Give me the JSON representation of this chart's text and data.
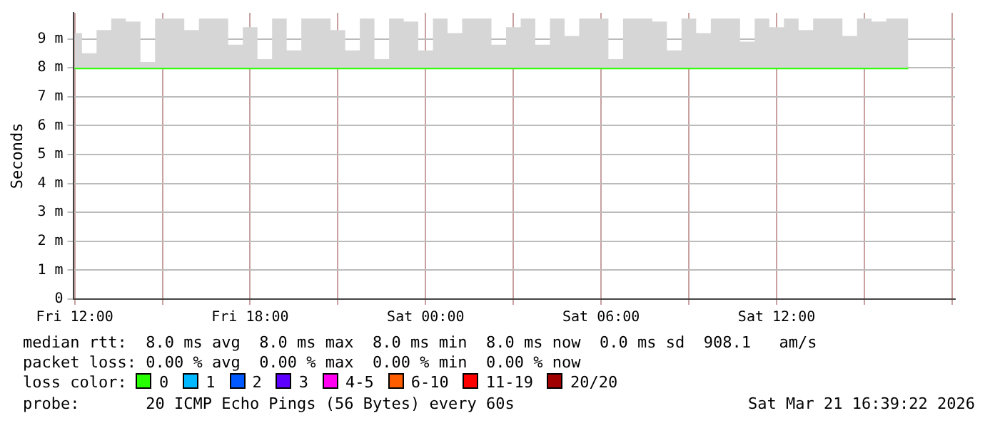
{
  "chart_data": {
    "type": "line",
    "ylabel": "Seconds",
    "legend_title": "loss color:",
    "legend": "bottom",
    "grid": true,
    "marker": "none",
    "line_style": "solid",
    "x": [
      "2026-03-20T12:00",
      "2026-03-20T12:30",
      "2026-03-20T13:00",
      "2026-03-20T13:30",
      "2026-03-20T14:00",
      "2026-03-20T14:30",
      "2026-03-20T15:00",
      "2026-03-20T15:30",
      "2026-03-20T16:00",
      "2026-03-20T16:30",
      "2026-03-20T17:00",
      "2026-03-20T17:30",
      "2026-03-20T18:00",
      "2026-03-20T18:30",
      "2026-03-20T19:00",
      "2026-03-20T19:30",
      "2026-03-20T20:00",
      "2026-03-20T20:30",
      "2026-03-20T21:00",
      "2026-03-20T21:30",
      "2026-03-20T22:00",
      "2026-03-20T22:30",
      "2026-03-20T23:00",
      "2026-03-20T23:30",
      "2026-03-21T00:00",
      "2026-03-21T00:30",
      "2026-03-21T01:00",
      "2026-03-21T01:30",
      "2026-03-21T02:00",
      "2026-03-21T02:30",
      "2026-03-21T03:00",
      "2026-03-21T03:30",
      "2026-03-21T04:00",
      "2026-03-21T04:30",
      "2026-03-21T05:00",
      "2026-03-21T05:30",
      "2026-03-21T06:00",
      "2026-03-21T06:30",
      "2026-03-21T07:00",
      "2026-03-21T07:30",
      "2026-03-21T08:00",
      "2026-03-21T08:30",
      "2026-03-21T09:00",
      "2026-03-21T09:30",
      "2026-03-21T10:00",
      "2026-03-21T10:30",
      "2026-03-21T11:00",
      "2026-03-21T11:30",
      "2026-03-21T12:00",
      "2026-03-21T12:30",
      "2026-03-21T13:00",
      "2026-03-21T13:30",
      "2026-03-21T14:00",
      "2026-03-21T14:30",
      "2026-03-21T15:00",
      "2026-03-21T15:30",
      "2026-03-21T16:00",
      "2026-03-21T16:30"
    ],
    "xlim": [
      "2026-03-20T11:57",
      "2026-03-21T18:06"
    ],
    "xticks": [
      {
        "value": "2026-03-20T12:00",
        "label": "Fri 12:00"
      },
      {
        "value": "2026-03-20T15:00",
        "label": null
      },
      {
        "value": "2026-03-20T18:00",
        "label": "Fri 18:00"
      },
      {
        "value": "2026-03-20T21:00",
        "label": null
      },
      {
        "value": "2026-03-21T00:00",
        "label": "Sat 00:00"
      },
      {
        "value": "2026-03-21T03:00",
        "label": null
      },
      {
        "value": "2026-03-21T06:00",
        "label": "Sat 06:00"
      },
      {
        "value": "2026-03-21T09:00",
        "label": null
      },
      {
        "value": "2026-03-21T12:00",
        "label": "Sat 12:00"
      },
      {
        "value": "2026-03-21T15:00",
        "label": null
      },
      {
        "value": "2026-03-21T18:00",
        "label": null
      }
    ],
    "ylim": [
      0,
      9.9
    ],
    "yticks": [
      0,
      {
        "value": 1,
        "label": "1 m"
      },
      {
        "value": 2,
        "label": "2 m"
      },
      {
        "value": 3,
        "label": "3 m"
      },
      {
        "value": 4,
        "label": "4 m"
      },
      {
        "value": 5,
        "label": "5 m"
      },
      {
        "value": 6,
        "label": "6 m"
      },
      {
        "value": 7,
        "label": "7 m"
      },
      {
        "value": 8,
        "label": "8 m"
      },
      {
        "value": 9,
        "label": "9 m"
      }
    ],
    "series": [
      {
        "name": "0",
        "color": "#26ff00",
        "values": [
          8,
          8,
          8,
          8,
          8,
          8,
          8,
          8,
          8,
          8,
          8,
          8,
          8,
          8,
          8,
          8,
          8,
          8,
          8,
          8,
          8,
          8,
          8,
          8,
          8,
          8,
          8,
          8,
          8,
          8,
          8,
          8,
          8,
          8,
          8,
          8,
          8,
          8,
          8,
          8,
          8,
          8,
          8,
          8,
          8,
          8,
          8,
          8,
          8,
          8,
          8,
          8,
          8,
          8,
          8,
          8,
          8,
          8
        ],
        "lower": [
          8,
          8,
          8,
          8,
          8,
          8,
          8,
          8,
          8,
          8,
          8,
          8,
          8,
          8,
          8,
          8,
          8,
          8,
          8,
          8,
          8,
          8,
          8,
          8,
          8,
          8,
          8,
          8,
          8,
          8,
          8,
          8,
          8,
          8,
          8,
          8,
          8,
          8,
          8,
          8,
          8,
          8,
          8,
          8,
          8,
          8,
          8,
          8,
          8,
          8,
          8,
          8,
          8,
          8,
          8,
          8,
          8,
          8
        ],
        "upper": [
          9.2,
          8.5,
          9.3,
          9.7,
          9.6,
          8.2,
          9.7,
          9.7,
          9.3,
          9.7,
          9.7,
          8.8,
          9.4,
          8.3,
          9.7,
          8.6,
          9.7,
          9.7,
          9.3,
          8.6,
          9.7,
          8.3,
          9.7,
          9.6,
          8.6,
          9.7,
          9.2,
          9.7,
          9.7,
          8.8,
          9.4,
          9.7,
          8.8,
          9.7,
          9.1,
          9.7,
          9.7,
          8.3,
          9.7,
          9.7,
          9.6,
          8.6,
          9.7,
          9.2,
          9.7,
          9.7,
          8.9,
          9.7,
          9.4,
          9.7,
          9.3,
          9.7,
          9.7,
          9.1,
          9.7,
          9.6,
          9.7,
          9.7
        ]
      },
      {
        "name": "1",
        "color": "#00b8ff",
        "values": [
          null,
          null,
          null,
          null,
          null,
          null,
          null,
          null,
          null,
          null,
          null,
          null,
          null,
          null,
          null,
          null,
          null,
          null,
          null,
          null,
          null,
          null,
          null,
          null,
          null,
          null,
          null,
          null,
          null,
          null,
          null,
          null,
          null,
          null,
          null,
          null,
          null,
          null,
          null,
          null,
          null,
          null,
          null,
          null,
          null,
          null,
          null,
          null,
          null,
          null,
          null,
          null,
          null,
          null,
          null,
          null,
          null,
          null
        ]
      },
      {
        "name": "2",
        "color": "#0059ff",
        "values": [
          null,
          null,
          null,
          null,
          null,
          null,
          null,
          null,
          null,
          null,
          null,
          null,
          null,
          null,
          null,
          null,
          null,
          null,
          null,
          null,
          null,
          null,
          null,
          null,
          null,
          null,
          null,
          null,
          null,
          null,
          null,
          null,
          null,
          null,
          null,
          null,
          null,
          null,
          null,
          null,
          null,
          null,
          null,
          null,
          null,
          null,
          null,
          null,
          null,
          null,
          null,
          null,
          null,
          null,
          null,
          null,
          null,
          null
        ]
      },
      {
        "name": "3",
        "color": "#5e00ff",
        "values": [
          null,
          null,
          null,
          null,
          null,
          null,
          null,
          null,
          null,
          null,
          null,
          null,
          null,
          null,
          null,
          null,
          null,
          null,
          null,
          null,
          null,
          null,
          null,
          null,
          null,
          null,
          null,
          null,
          null,
          null,
          null,
          null,
          null,
          null,
          null,
          null,
          null,
          null,
          null,
          null,
          null,
          null,
          null,
          null,
          null,
          null,
          null,
          null,
          null,
          null,
          null,
          null,
          null,
          null,
          null,
          null,
          null,
          null
        ]
      },
      {
        "name": "4-5",
        "color": "#ff00f0",
        "values": [
          null,
          null,
          null,
          null,
          null,
          null,
          null,
          null,
          null,
          null,
          null,
          null,
          null,
          null,
          null,
          null,
          null,
          null,
          null,
          null,
          null,
          null,
          null,
          null,
          null,
          null,
          null,
          null,
          null,
          null,
          null,
          null,
          null,
          null,
          null,
          null,
          null,
          null,
          null,
          null,
          null,
          null,
          null,
          null,
          null,
          null,
          null,
          null,
          null,
          null,
          null,
          null,
          null,
          null,
          null,
          null,
          null,
          null
        ]
      },
      {
        "name": "6-10",
        "color": "#ff5e00",
        "values": [
          null,
          null,
          null,
          null,
          null,
          null,
          null,
          null,
          null,
          null,
          null,
          null,
          null,
          null,
          null,
          null,
          null,
          null,
          null,
          null,
          null,
          null,
          null,
          null,
          null,
          null,
          null,
          null,
          null,
          null,
          null,
          null,
          null,
          null,
          null,
          null,
          null,
          null,
          null,
          null,
          null,
          null,
          null,
          null,
          null,
          null,
          null,
          null,
          null,
          null,
          null,
          null,
          null,
          null,
          null,
          null,
          null,
          null
        ]
      },
      {
        "name": "11-19",
        "color": "#ff0000",
        "values": [
          null,
          null,
          null,
          null,
          null,
          null,
          null,
          null,
          null,
          null,
          null,
          null,
          null,
          null,
          null,
          null,
          null,
          null,
          null,
          null,
          null,
          null,
          null,
          null,
          null,
          null,
          null,
          null,
          null,
          null,
          null,
          null,
          null,
          null,
          null,
          null,
          null,
          null,
          null,
          null,
          null,
          null,
          null,
          null,
          null,
          null,
          null,
          null,
          null,
          null,
          null,
          null,
          null,
          null,
          null,
          null,
          null,
          null
        ]
      },
      {
        "name": "20/20",
        "color": "#a10000",
        "values": [
          null,
          null,
          null,
          null,
          null,
          null,
          null,
          null,
          null,
          null,
          null,
          null,
          null,
          null,
          null,
          null,
          null,
          null,
          null,
          null,
          null,
          null,
          null,
          null,
          null,
          null,
          null,
          null,
          null,
          null,
          null,
          null,
          null,
          null,
          null,
          null,
          null,
          null,
          null,
          null,
          null,
          null,
          null,
          null,
          null,
          null,
          null,
          null,
          null,
          null,
          null,
          null,
          null,
          null,
          null,
          null,
          null,
          null
        ]
      }
    ],
    "annotations": [
      "median rtt:  8.0 ms avg  8.0 ms max  8.0 ms min  8.0 ms now  0.0 ms sd  908.1   am/s",
      "packet loss: 0.00 % avg  0.00 % max  0.00 % min  0.00 % now",
      "probe:       20 ICMP Echo Pings (56 Bytes) every 60s",
      "Sat Mar 21 16:39:22 2026"
    ]
  }
}
